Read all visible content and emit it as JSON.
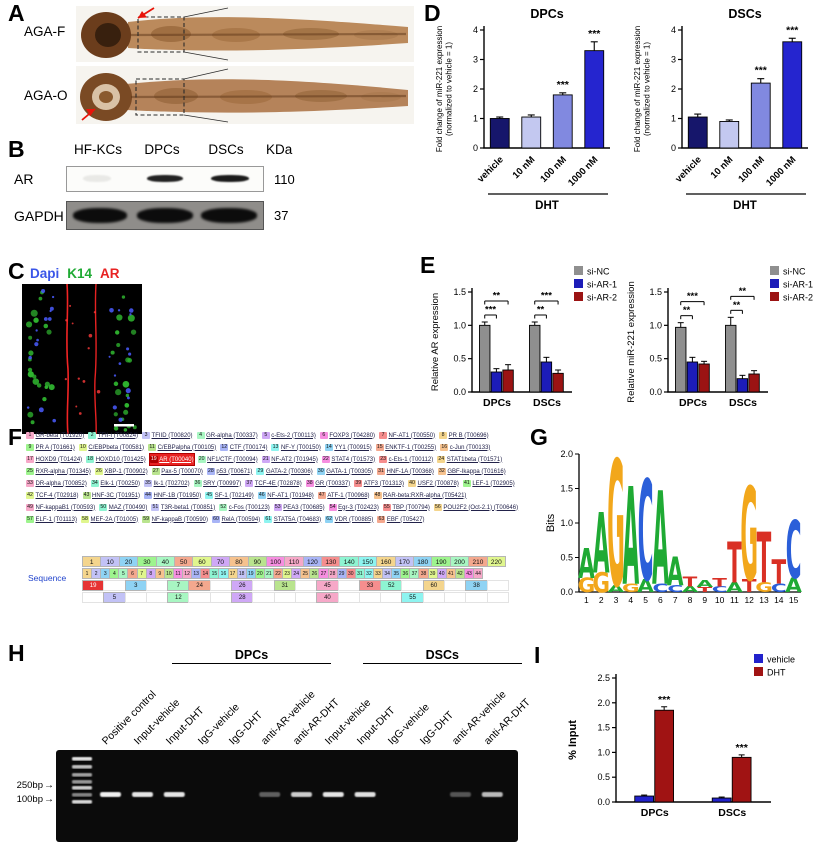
{
  "panels": {
    "a": "A",
    "b": "B",
    "c": "C",
    "d": "D",
    "e": "E",
    "f": "F",
    "g": "G",
    "h": "H",
    "i": "I"
  },
  "panel_a": {
    "rows": [
      {
        "label": "AGA-F"
      },
      {
        "label": "AGA-O"
      }
    ]
  },
  "panel_b": {
    "lanes": [
      "HF-KCs",
      "DPCs",
      "DSCs"
    ],
    "kda_label": "KDa",
    "rows": [
      {
        "protein": "AR",
        "kda": "110"
      },
      {
        "protein": "GAPDH",
        "kda": "37"
      }
    ]
  },
  "panel_c": {
    "stains": [
      {
        "label": "Dapi",
        "color": "#3a55e8"
      },
      {
        "label": "K14",
        "color": "#1faa34"
      },
      {
        "label": "AR",
        "color": "#e82222"
      }
    ]
  },
  "panel_f": {
    "palette": [
      "#f6a8c8",
      "#8fd3f4",
      "#b9e48e",
      "#f4d58d",
      "#cfa8f6",
      "#8ef4d2",
      "#f4a88e",
      "#a8b4f6",
      "#9ef48e",
      "#f68ee0",
      "#c2c2f6",
      "#f6c28e",
      "#8ef4f0",
      "#e0f68e",
      "#f68e8e",
      "#a8f6c2"
    ],
    "entries": [
      {
        "t": "GR-beta (T01920)"
      },
      {
        "t": "TFII-I (T00824)"
      },
      {
        "t": "TFIID (T00820)"
      },
      {
        "t": "GR-alpha (T00337)"
      },
      {
        "t": "c-Ets-2 (T00113)"
      },
      {
        "t": "FOXP3 (T04280)"
      },
      {
        "t": "NF-AT1 (T00550)"
      },
      {
        "t": "PR B (T00696)"
      },
      {
        "t": "PR A (T01661)"
      },
      {
        "t": "C/EBPbeta (T00581)"
      },
      {
        "t": "C/EBPalpha (T00105)"
      },
      {
        "t": "CTF (T00174)"
      },
      {
        "t": "NF-Y (T00150)"
      },
      {
        "t": "YY1 (T00915)"
      },
      {
        "t": "ENKTF-1 (T00255)"
      },
      {
        "t": "c-Jun (T00133)"
      },
      {
        "t": "HOXD9 (T01424)"
      },
      {
        "t": "HOXD10 (T01425)"
      },
      {
        "t": "AR (T00040)",
        "hl": true
      },
      {
        "t": "NF1/CTF (T00094)"
      },
      {
        "t": "NF-AT2 (T01945)"
      },
      {
        "t": "STAT4 (T01573)"
      },
      {
        "t": "c-Ets-1 (T00112)"
      },
      {
        "t": "STAT1beta (T01571)"
      },
      {
        "t": "RXR-alpha (T01345)"
      },
      {
        "t": "XBP-1 (T00902)"
      },
      {
        "t": "Pax-5 (T00070)"
      },
      {
        "t": "p53 (T00671)"
      },
      {
        "t": "GATA-2 (T00306)"
      },
      {
        "t": "GATA-1 (T00305)"
      },
      {
        "t": "HNF-1A (T00368)"
      },
      {
        "t": "GBF-Ikappa (T01616)"
      },
      {
        "t": "DR-alpha (T00852)"
      },
      {
        "t": "Elk-1 (T00250)"
      },
      {
        "t": "Ik-1 (T02702)"
      },
      {
        "t": "SRY (T00997)"
      },
      {
        "t": "TCF-4E (T02878)"
      },
      {
        "t": "GR (T00337)"
      },
      {
        "t": "ATF3 (T01313)"
      },
      {
        "t": "USF2 (T00878)"
      },
      {
        "t": "LEF-1 (T02905)"
      },
      {
        "t": "TCF-4 (T02918)"
      },
      {
        "t": "HNF-3C (T01951)"
      },
      {
        "t": "HNF-1B (T01950)"
      },
      {
        "t": "SF-1 (T02149)"
      },
      {
        "t": "NF-AT1 (T01948)"
      },
      {
        "t": "ATF-1 (T00968)"
      },
      {
        "t": "RAR-beta:RXR-alpha (T05421)"
      },
      {
        "t": "NF-kappaB1 (T00593)"
      },
      {
        "t": "MAZ (T00490)"
      },
      {
        "t": "T3R-beta1 (T00851)"
      },
      {
        "t": "c-Fos (T00123)"
      },
      {
        "t": "PEA3 (T00685)"
      },
      {
        "t": "Egr-3 (T02423)"
      },
      {
        "t": "TBP (T00794)"
      },
      {
        "t": "POU2F2 (Oct-2.1) (T00646)"
      },
      {
        "t": "ELF-1 (T01113)"
      },
      {
        "t": "MEF-2A (T01005)"
      },
      {
        "t": "NF-kappaB (T00590)"
      },
      {
        "t": "RelA (T00594)"
      },
      {
        "t": "STAT5A (T04683)"
      },
      {
        "t": "VDR (T00885)"
      },
      {
        "t": "EBF (T05427)"
      }
    ],
    "ruler": {
      "label": "Sequence",
      "scale": [
        "1",
        "10",
        "20",
        "30",
        "40",
        "50",
        "60",
        "70",
        "80",
        "90",
        "100",
        "110",
        "120",
        "130",
        "140",
        "150",
        "160",
        "170",
        "180",
        "190",
        "200",
        "210",
        "220"
      ],
      "row1": [
        "1",
        "2",
        "3",
        "4",
        "5",
        "6",
        "7",
        "8",
        "9",
        "10",
        "11",
        "12",
        "13",
        "14",
        "15",
        "16",
        "17",
        "18",
        "19",
        "20",
        "21",
        "22",
        "23",
        "24",
        "25",
        "26",
        "27",
        "28",
        "29",
        "30",
        "31",
        "32",
        "33",
        "34",
        "35",
        "36",
        "37",
        "38",
        "39",
        "40",
        "41",
        "42",
        "43",
        "44"
      ],
      "row2": [
        "!19",
        "",
        "3",
        "",
        "7",
        "24",
        "",
        "26",
        "",
        "31",
        "",
        "45",
        "",
        "33",
        "52",
        "",
        "60",
        "",
        "38",
        ""
      ],
      "row3": [
        "",
        "5",
        "",
        "",
        "12",
        "",
        "",
        "28",
        "",
        "",
        "",
        "40",
        "",
        "",
        "",
        "55",
        "",
        "",
        "",
        ""
      ]
    }
  },
  "panel_h": {
    "groups": [
      {
        "label": "DPCs",
        "lanes": [
          1,
          6
        ]
      },
      {
        "label": "DSCs",
        "lanes": [
          7,
          12
        ]
      }
    ],
    "lanes": [
      {
        "label": "Positive control",
        "band": 0.95
      },
      {
        "label": "Input-vehicle",
        "band": 0.9
      },
      {
        "label": "Input-DHT",
        "band": 0.9
      },
      {
        "label": "IgG-vehicle",
        "band": 0
      },
      {
        "label": "IgG-DHT",
        "band": 0
      },
      {
        "label": "anti-AR-vehicle",
        "band": 0.35
      },
      {
        "label": "anti-AR-DHT",
        "band": 0.8
      },
      {
        "label": "Input-vehicle",
        "band": 0.9
      },
      {
        "label": "Input-DHT",
        "band": 0.88
      },
      {
        "label": "IgG-vehicle",
        "band": 0
      },
      {
        "label": "IgG-DHT",
        "band": 0
      },
      {
        "label": "anti-AR-vehicle",
        "band": 0.3
      },
      {
        "label": "anti-AR-DHT",
        "band": 0.72
      }
    ],
    "ladder": [
      {
        "y": 7,
        "i": 0.9
      },
      {
        "y": 15,
        "i": 0.75
      },
      {
        "y": 23,
        "i": 0.62
      },
      {
        "y": 30,
        "i": 0.58
      },
      {
        "y": 36,
        "i": 0.8
      },
      {
        "y": 43,
        "i": 0.5
      },
      {
        "y": 50,
        "i": 0.85
      }
    ],
    "markers": [
      {
        "label": "250bp",
        "y": 36
      },
      {
        "label": "100bp",
        "y": 50
      }
    ]
  },
  "chart_data": [
    {
      "type": "bar",
      "title": "DPCs",
      "ylabel": "Fold change of miR-221 expression\n(normalized to vehicle = 1)",
      "categories": [
        "vehicle",
        "10 nM",
        "100 nM",
        "1000 nM"
      ],
      "values": [
        1.0,
        1.05,
        1.8,
        3.3
      ],
      "errors": [
        0.05,
        0.07,
        0.07,
        0.3
      ],
      "bar_colors": [
        "#16166b",
        "#c3c8f0",
        "#8189e0",
        "#2525cf"
      ],
      "sig_above": [
        "",
        "",
        "***",
        "***"
      ],
      "xlabel": "DHT",
      "ylim": [
        0,
        4
      ],
      "yticks": [
        "0",
        "1",
        "2",
        "3",
        "4"
      ]
    },
    {
      "type": "bar",
      "title": "DSCs",
      "ylabel": "Fold change of miR-221 expression\n(normalized to vehicle = 1)",
      "categories": [
        "vehicle",
        "10 nM",
        "100 nM",
        "1000 nM"
      ],
      "values": [
        1.05,
        0.9,
        2.2,
        3.6
      ],
      "errors": [
        0.1,
        0.05,
        0.15,
        0.12
      ],
      "bar_colors": [
        "#16166b",
        "#c3c8f0",
        "#8189e0",
        "#2525cf"
      ],
      "sig_above": [
        "",
        "",
        "***",
        "***"
      ],
      "xlabel": "DHT",
      "ylim": [
        0,
        4
      ],
      "yticks": [
        "0",
        "1",
        "2",
        "3",
        "4"
      ]
    },
    {
      "type": "grouped-bar",
      "ylabel": "Relative AR expression",
      "categories": [
        "DPCs",
        "DSCs"
      ],
      "series": [
        {
          "name": "si-NC",
          "color": "#8f8f8f",
          "values": [
            1.0,
            1.0
          ],
          "errors": [
            0.05,
            0.05
          ]
        },
        {
          "name": "si-AR-1",
          "color": "#1c1cb8",
          "values": [
            0.3,
            0.45
          ],
          "errors": [
            0.05,
            0.07
          ]
        },
        {
          "name": "si-AR-2",
          "color": "#9b1313",
          "values": [
            0.33,
            0.28
          ],
          "errors": [
            0.08,
            0.05
          ]
        }
      ],
      "legend": true,
      "ylim": [
        0,
        1.5
      ],
      "yticks": [
        "0.0",
        "0.5",
        "1.0",
        "1.5"
      ],
      "brackets": [
        {
          "cat": 0,
          "from": 0,
          "to": 1,
          "label": "***",
          "level": 1
        },
        {
          "cat": 0,
          "from": 0,
          "to": 2,
          "label": "**",
          "level": 2
        },
        {
          "cat": 1,
          "from": 0,
          "to": 1,
          "label": "**",
          "level": 1
        },
        {
          "cat": 1,
          "from": 0,
          "to": 2,
          "label": "***",
          "level": 2
        }
      ]
    },
    {
      "type": "grouped-bar",
      "ylabel": "Relative miR-221 expression",
      "categories": [
        "DPCs",
        "DSCs"
      ],
      "series": [
        {
          "name": "si-NC",
          "color": "#8f8f8f",
          "values": [
            0.97,
            1.0
          ],
          "errors": [
            0.07,
            0.12
          ]
        },
        {
          "name": "si-AR-1",
          "color": "#1c1cb8",
          "values": [
            0.45,
            0.2
          ],
          "errors": [
            0.07,
            0.05
          ]
        },
        {
          "name": "si-AR-2",
          "color": "#9b1313",
          "values": [
            0.42,
            0.27
          ],
          "errors": [
            0.04,
            0.05
          ]
        }
      ],
      "legend": true,
      "ylim": [
        0,
        1.5
      ],
      "yticks": [
        "0.0",
        "0.5",
        "1.0",
        "1.5"
      ],
      "brackets": [
        {
          "cat": 0,
          "from": 0,
          "to": 1,
          "label": "**",
          "level": 1
        },
        {
          "cat": 0,
          "from": 0,
          "to": 2,
          "label": "***",
          "level": 2
        },
        {
          "cat": 1,
          "from": 0,
          "to": 1,
          "label": "**",
          "level": 1
        },
        {
          "cat": 1,
          "from": 0,
          "to": 2,
          "label": "**",
          "level": 2
        }
      ]
    },
    {
      "type": "grouped-bar",
      "ylabel": "% Input",
      "categories": [
        "DPCs",
        "DSCs"
      ],
      "series": [
        {
          "name": "vehicle",
          "color": "#2222cc",
          "values": [
            0.12,
            0.08
          ],
          "errors": [
            0.02,
            0.02
          ]
        },
        {
          "name": "DHT",
          "color": "#a01313",
          "values": [
            1.85,
            0.9
          ],
          "errors": [
            0.07,
            0.05
          ]
        }
      ],
      "legend": true,
      "ylim": [
        0,
        2.5
      ],
      "yticks": [
        "0.0",
        "0.5",
        "1.0",
        "1.5",
        "2.0",
        "2.5"
      ],
      "sig": [
        {
          "cat": 0,
          "series": 1,
          "label": "***"
        },
        {
          "cat": 1,
          "series": 1,
          "label": "***"
        }
      ]
    },
    {
      "type": "logo",
      "ylabel": "Bits",
      "ylim": [
        0,
        2
      ],
      "yticks": [
        "0.0",
        "0.5",
        "1.0",
        "1.5",
        "2.0"
      ],
      "colors": {
        "A": "#1faa34",
        "C": "#2b5fd9",
        "G": "#f2a71b",
        "T": "#d93025"
      },
      "positions": [
        {
          "stack": [
            [
              "G",
              0.2
            ],
            [
              "A",
              0.42
            ]
          ]
        },
        {
          "stack": [
            [
              "G",
              0.28
            ],
            [
              "A",
              0.85
            ]
          ]
        },
        {
          "stack": [
            [
              "A",
              0.1
            ],
            [
              "G",
              1.78
            ]
          ]
        },
        {
          "stack": [
            [
              "G",
              0.12
            ],
            [
              "A",
              1.38
            ]
          ]
        },
        {
          "stack": [
            [
              "A",
              0.18
            ],
            [
              "C",
              1.42
            ]
          ]
        },
        {
          "stack": [
            [
              "C",
              0.12
            ],
            [
              "A",
              1.32
            ]
          ]
        },
        {
          "stack": [
            [
              "C",
              0.1
            ],
            [
              "A",
              0.4
            ]
          ]
        },
        {
          "stack": [
            [
              "A",
              0.08
            ],
            [
              "T",
              0.14
            ]
          ]
        },
        {
          "stack": [
            [
              "T",
              0.07
            ],
            [
              "A",
              0.1
            ]
          ]
        },
        {
          "stack": [
            [
              "C",
              0.08
            ],
            [
              "T",
              0.12
            ]
          ]
        },
        {
          "stack": [
            [
              "A",
              0.14
            ],
            [
              "T",
              0.58
            ]
          ]
        },
        {
          "stack": [
            [
              "T",
              0.18
            ],
            [
              "G",
              1.32
            ]
          ]
        },
        {
          "stack": [
            [
              "G",
              0.14
            ],
            [
              "T",
              0.72
            ]
          ]
        },
        {
          "stack": [
            [
              "C",
              0.12
            ],
            [
              "T",
              0.34
            ]
          ]
        },
        {
          "stack": [
            [
              "A",
              0.2
            ],
            [
              "C",
              0.82
            ]
          ]
        }
      ]
    }
  ]
}
